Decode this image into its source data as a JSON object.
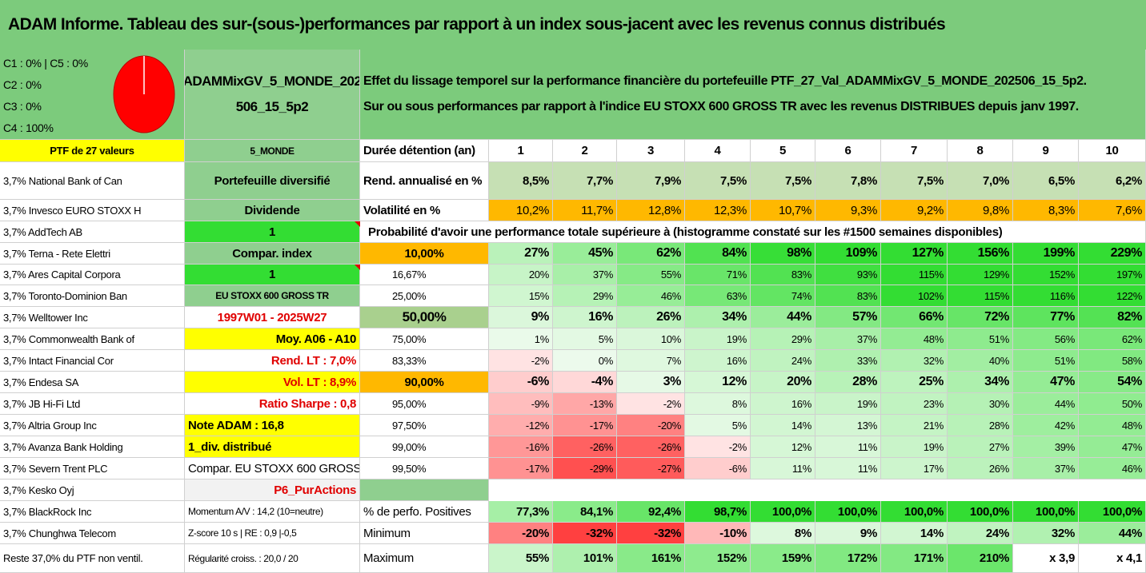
{
  "title": "ADAM Informe. Tableau des sur-(sous-)performances par rapport à un index sous-jacent avec les revenus connus distribués",
  "class_summary": [
    "C1 : 0% | C5 : 0%",
    "C2 : 0%",
    "C3 : 0%",
    "C4 : 100%"
  ],
  "portfolio_code": "ADAMMixGV_5_MONDE_202506_15_5p2",
  "description": [
    "Effet du lissage temporel sur la performance financière du portefeuille PTF_27_Val_ADAMMixGV_5_MONDE_202506_15_5p2.",
    "Sur ou sous performances par rapport à l'indice EU STOXX 600 GROSS TR avec les revenus DISTRIBUES depuis janv 1997."
  ],
  "ptf_label": "PTF de 27 valeurs",
  "holdings": [
    "3,7% National Bank of Can",
    "3,7% Invesco EURO STOXX H",
    "3,7% AddTech AB",
    "3,7% Terna - Rete Elettri",
    "3,7% Ares Capital Corpora",
    "3,7% Toronto-Dominion Ban",
    "3,7% Welltower Inc",
    "3,7% Commonwealth Bank of",
    "3,7% Intact Financial Cor",
    "3,7% Endesa SA",
    "3,7% JB Hi-Fi Ltd",
    "3,7% Altria Group Inc",
    "3,7% Avanza Bank Holding",
    "3,7% Severn Trent PLC",
    "3,7% Kesko Oyj",
    "3,7% BlackRock Inc",
    "3,7% Chunghwa Telecom",
    "Reste 37,0% du PTF non ventil."
  ],
  "info_column": [
    "5_MONDE",
    "Portefeuille diversifié",
    "Dividende",
    "1",
    "Compar. index",
    "1",
    "EU STOXX 600 GROSS TR",
    "1997W01 - 2025W27",
    "Moy. A06 - A10",
    "Rend. LT : 7,0%",
    "Vol. LT : 8,9%",
    "Ratio Sharpe : 0,8",
    "Note ADAM : 16,8",
    "1_div. distribué",
    "Compar. EU STOXX 600 GROSS TR",
    "P6_PurActions",
    "Momentum A/V : 14,2 (10=neutre)",
    "Z-score 10 s | RE : 0,9 |-0,5",
    "Régularité croiss. : 20,0 / 20"
  ],
  "header_label": "Durée détention (an)",
  "years": [
    "1",
    "2",
    "3",
    "4",
    "5",
    "6",
    "7",
    "8",
    "9",
    "10"
  ],
  "rend_label": "Rend. annualisé en %",
  "rend_values": [
    "8,5%",
    "7,7%",
    "7,9%",
    "7,5%",
    "7,5%",
    "7,8%",
    "7,5%",
    "7,0%",
    "6,5%",
    "6,2%"
  ],
  "vol_label": "Volatilité en %",
  "vol_values": [
    "10,2%",
    "11,7%",
    "12,8%",
    "12,3%",
    "10,7%",
    "9,3%",
    "9,2%",
    "9,8%",
    "8,3%",
    "7,6%"
  ],
  "prob_title": "Probabilité d'avoir une performance totale supérieure à (histogramme constaté sur les #1500 semaines disponibles)",
  "prob_rows": [
    {
      "p": "10,00%",
      "v": [
        "27%",
        "45%",
        "62%",
        "84%",
        "98%",
        "109%",
        "127%",
        "156%",
        "199%",
        "229%"
      ]
    },
    {
      "p": "16,67%",
      "v": [
        "20%",
        "37%",
        "55%",
        "71%",
        "83%",
        "93%",
        "115%",
        "129%",
        "152%",
        "197%"
      ]
    },
    {
      "p": "25,00%",
      "v": [
        "15%",
        "29%",
        "46%",
        "63%",
        "74%",
        "83%",
        "102%",
        "115%",
        "116%",
        "122%"
      ]
    },
    {
      "p": "50,00%",
      "v": [
        "9%",
        "16%",
        "26%",
        "34%",
        "44%",
        "57%",
        "66%",
        "72%",
        "77%",
        "82%"
      ]
    },
    {
      "p": "75,00%",
      "v": [
        "1%",
        "5%",
        "10%",
        "19%",
        "29%",
        "37%",
        "48%",
        "51%",
        "56%",
        "62%"
      ]
    },
    {
      "p": "83,33%",
      "v": [
        "-2%",
        "0%",
        "7%",
        "16%",
        "24%",
        "33%",
        "32%",
        "40%",
        "51%",
        "58%"
      ]
    },
    {
      "p": "90,00%",
      "v": [
        "-6%",
        "-4%",
        "3%",
        "12%",
        "20%",
        "28%",
        "25%",
        "34%",
        "47%",
        "54%"
      ]
    },
    {
      "p": "95,00%",
      "v": [
        "-9%",
        "-13%",
        "-2%",
        "8%",
        "16%",
        "19%",
        "23%",
        "30%",
        "44%",
        "50%"
      ]
    },
    {
      "p": "97,50%",
      "v": [
        "-12%",
        "-17%",
        "-20%",
        "5%",
        "14%",
        "13%",
        "21%",
        "28%",
        "42%",
        "48%"
      ]
    },
    {
      "p": "99,00%",
      "v": [
        "-16%",
        "-26%",
        "-26%",
        "-2%",
        "12%",
        "11%",
        "19%",
        "27%",
        "39%",
        "47%"
      ]
    },
    {
      "p": "99,50%",
      "v": [
        "-17%",
        "-29%",
        "-27%",
        "-6%",
        "11%",
        "11%",
        "17%",
        "26%",
        "37%",
        "46%"
      ]
    }
  ],
  "pos_label": "% de perfo. Positives",
  "pos_values": [
    "77,3%",
    "84,1%",
    "92,4%",
    "98,7%",
    "100,0%",
    "100,0%",
    "100,0%",
    "100,0%",
    "100,0%",
    "100,0%"
  ],
  "min_label": "Minimum",
  "min_values": [
    "-20%",
    "-32%",
    "-32%",
    "-10%",
    "8%",
    "9%",
    "14%",
    "24%",
    "32%",
    "44%"
  ],
  "max_label": "Maximum",
  "max_values": [
    "55%",
    "101%",
    "161%",
    "152%",
    "159%",
    "172%",
    "171%",
    "210%",
    "x 3,9",
    "x 4,1"
  ],
  "colors": {
    "title_green": "#7ccb7c",
    "mid_green": "#8fcf8f",
    "yellow": "#ffff00",
    "bright_green": "#33dd33",
    "orange": "#ffb800",
    "light_olive": "#c6e0b4",
    "highlight_olive": "#a9d08e",
    "pie_red": "#ff0000"
  }
}
